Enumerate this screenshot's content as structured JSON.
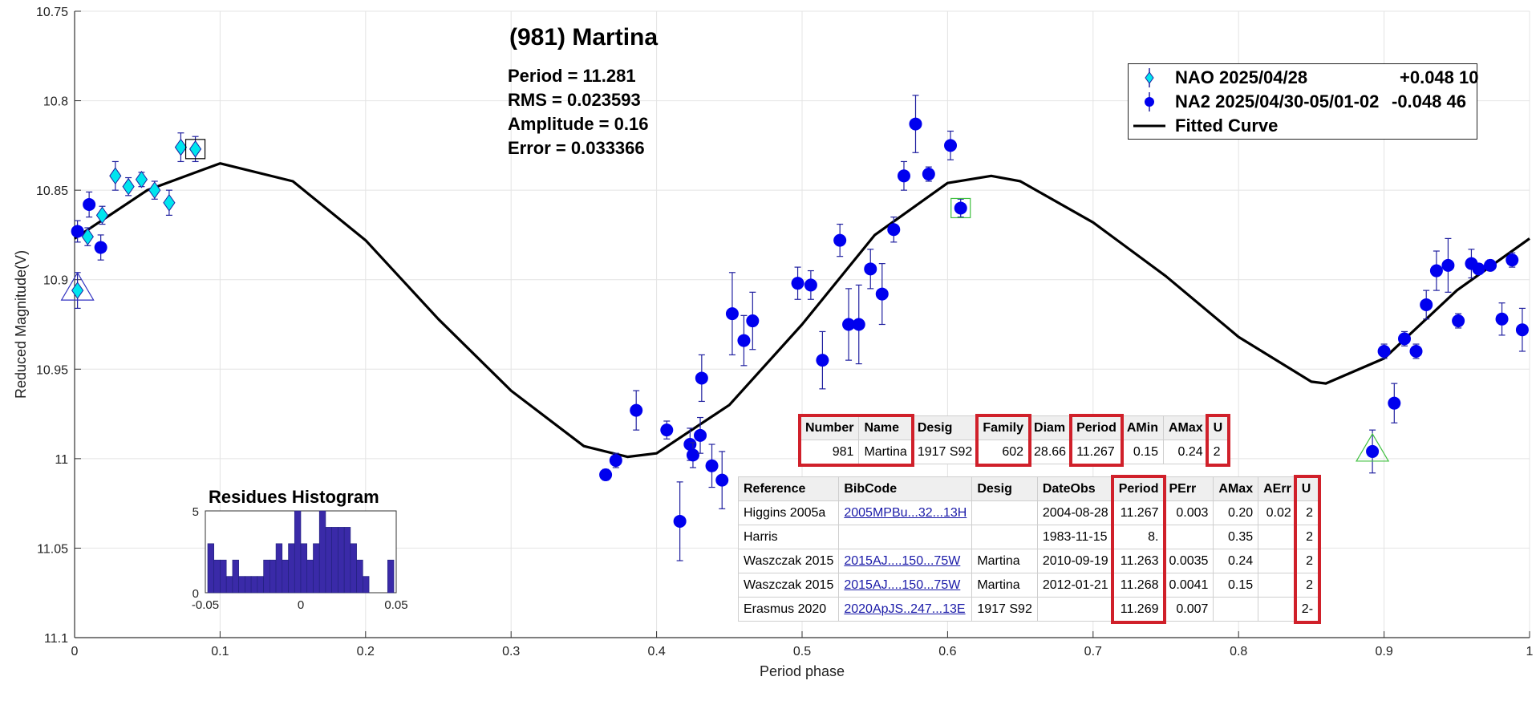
{
  "title": "(981) Martina",
  "stats": [
    "Period =  11.281",
    "RMS = 0.023593",
    "Amplitude = 0.16",
    "Error = 0.033366"
  ],
  "legend": [
    {
      "name": "NAO 2025/04/28",
      "offset": "+0.048 10",
      "color": "#00e5ee",
      "marker": "diamond"
    },
    {
      "name": "NA2 2025/04/30-05/01-02",
      "offset": "-0.048 46",
      "color": "#0000ee",
      "marker": "circle"
    },
    {
      "name": "Fitted Curve",
      "offset": "",
      "color": "#000000",
      "marker": "line"
    }
  ],
  "chart_data": [
    {
      "type": "scatter",
      "xlabel": "Period phase",
      "ylabel": "Reduced Magnitude(V)",
      "xlim": [
        0,
        1
      ],
      "ylim": [
        10.75,
        11.1
      ],
      "y_reversed": true,
      "x_ticks": [
        "0",
        "0.1",
        "0.2",
        "0.3",
        "0.4",
        "0.5",
        "0.6",
        "0.7",
        "0.8",
        "0.9",
        "1"
      ],
      "y_ticks": [
        "10.75",
        "10.8",
        "10.85",
        "10.9",
        "10.95",
        "11",
        "11.05",
        "11.1"
      ],
      "grid": true,
      "series": [
        {
          "name": "NAO 2025/04/28",
          "color": "#00e5ee",
          "marker": "diamond",
          "x": [
            0.002,
            0.009,
            0.019,
            0.028,
            0.037,
            0.046,
            0.055,
            0.065,
            0.073,
            0.083
          ],
          "y": [
            10.906,
            10.876,
            10.864,
            10.842,
            10.848,
            10.844,
            10.85,
            10.857,
            10.826,
            10.827
          ],
          "err": [
            0.01,
            0.005,
            0.005,
            0.008,
            0.005,
            0.004,
            0.005,
            0.007,
            0.008,
            0.007
          ]
        },
        {
          "name": "NA2 2025/04/30-05/01-02",
          "color": "#0000ee",
          "marker": "circle",
          "x": [
            0.002,
            0.01,
            0.018,
            0.365,
            0.372,
            0.386,
            0.407,
            0.416,
            0.423,
            0.425,
            0.43,
            0.431,
            0.438,
            0.445,
            0.452,
            0.46,
            0.466,
            0.497,
            0.506,
            0.514,
            0.526,
            0.532,
            0.539,
            0.547,
            0.555,
            0.563,
            0.57,
            0.578,
            0.587,
            0.602,
            0.609,
            0.892,
            0.9,
            0.907,
            0.914,
            0.922,
            0.929,
            0.936,
            0.944,
            0.951,
            0.96,
            0.965,
            0.973,
            0.981,
            0.988,
            0.995
          ],
          "y": [
            10.873,
            10.858,
            10.882,
            11.009,
            11.001,
            10.973,
            10.984,
            11.035,
            10.992,
            10.998,
            10.987,
            10.955,
            11.004,
            11.012,
            10.919,
            10.934,
            10.923,
            10.902,
            10.903,
            10.945,
            10.878,
            10.925,
            10.925,
            10.894,
            10.908,
            10.872,
            10.842,
            10.813,
            10.841,
            10.825,
            10.86,
            10.996,
            10.94,
            10.969,
            10.933,
            10.94,
            10.914,
            10.895,
            10.892,
            10.923,
            10.891,
            10.894,
            10.892,
            10.922,
            10.889,
            10.928
          ],
          "err": [
            0.006,
            0.007,
            0.007,
            0.003,
            0.004,
            0.011,
            0.005,
            0.022,
            0.009,
            0.007,
            0.01,
            0.013,
            0.012,
            0.016,
            0.023,
            0.014,
            0.016,
            0.009,
            0.008,
            0.016,
            0.009,
            0.02,
            0.022,
            0.011,
            0.017,
            0.007,
            0.008,
            0.016,
            0.004,
            0.008,
            0.005,
            0.012,
            0.004,
            0.011,
            0.004,
            0.004,
            0.008,
            0.011,
            0.015,
            0.004,
            0.008,
            0.003,
            0.003,
            0.009,
            0.004,
            0.012
          ]
        },
        {
          "name": "Fitted Curve",
          "type": "line",
          "color": "#000000",
          "x": [
            0,
            0.05,
            0.1,
            0.15,
            0.2,
            0.25,
            0.3,
            0.35,
            0.38,
            0.4,
            0.45,
            0.5,
            0.55,
            0.6,
            0.63,
            0.65,
            0.7,
            0.75,
            0.8,
            0.85,
            0.86,
            0.9,
            0.95,
            1.0
          ],
          "y": [
            10.877,
            10.85,
            10.835,
            10.845,
            10.878,
            10.922,
            10.962,
            10.993,
            10.999,
            10.997,
            10.97,
            10.925,
            10.875,
            10.846,
            10.842,
            10.845,
            10.868,
            10.898,
            10.932,
            10.957,
            10.958,
            10.944,
            10.906,
            10.877
          ]
        }
      ],
      "annotations": [
        {
          "type": "open-triangle",
          "x": 0.002,
          "y": 10.906,
          "color": "#3030c0"
        },
        {
          "type": "open-triangle",
          "x": 0.892,
          "y": 10.996,
          "color": "#40c040"
        },
        {
          "type": "open-square",
          "x": 0.083,
          "y": 10.827,
          "color": "#000000"
        },
        {
          "type": "open-square",
          "x": 0.609,
          "y": 10.86,
          "color": "#40c040"
        }
      ]
    },
    {
      "type": "bar",
      "title": "Residues Histogram",
      "x_ticks": [
        "-0.05",
        "0",
        "0.05"
      ],
      "y_ticks": [
        "0",
        "5"
      ],
      "xlim": [
        -0.05,
        0.05
      ],
      "ylim": [
        0,
        5
      ],
      "bin_width": 0.00325,
      "color": "#3a2aa8",
      "values": [
        3,
        2,
        2,
        1,
        2,
        1,
        1,
        1,
        1,
        2,
        2,
        3,
        2,
        3,
        5,
        3,
        2,
        3,
        5,
        4,
        4,
        4,
        4,
        3,
        2,
        1,
        0,
        0,
        0,
        2
      ]
    }
  ],
  "asteroid_table": {
    "headers": [
      "Number",
      "Name",
      "Desig",
      "Family",
      "Diam",
      "Period",
      "AMin",
      "AMax",
      "U"
    ],
    "row": [
      "981",
      "Martina",
      "1917 S92",
      "602",
      "28.66",
      "11.267",
      "0.15",
      "0.24",
      "2"
    ]
  },
  "reference_table": {
    "headers": [
      "Reference",
      "BibCode",
      "Desig",
      "DateObs",
      "Period",
      "PErr",
      "AMax",
      "AErr",
      "U"
    ],
    "rows": [
      [
        "Higgins 2005a",
        "2005MPBu...32...13H",
        "",
        "2004-08-28",
        "11.267",
        "0.003",
        "0.20",
        "0.02",
        "2"
      ],
      [
        "Harris",
        "",
        "",
        "1983-11-15",
        "8.",
        "",
        "0.35",
        "",
        "2"
      ],
      [
        "Waszczak 2015",
        "2015AJ....150...75W",
        "Martina",
        "2010-09-19",
        "11.263",
        "0.0035",
        "0.24",
        "",
        "2"
      ],
      [
        "Waszczak 2015",
        "2015AJ....150...75W",
        "Martina",
        "2012-01-21",
        "11.268",
        "0.0041",
        "0.15",
        "",
        "2"
      ],
      [
        "Erasmus 2020",
        "2020ApJS..247...13E",
        "1917 S92",
        "",
        "11.269",
        "0.007",
        "",
        "",
        "2-"
      ]
    ]
  }
}
